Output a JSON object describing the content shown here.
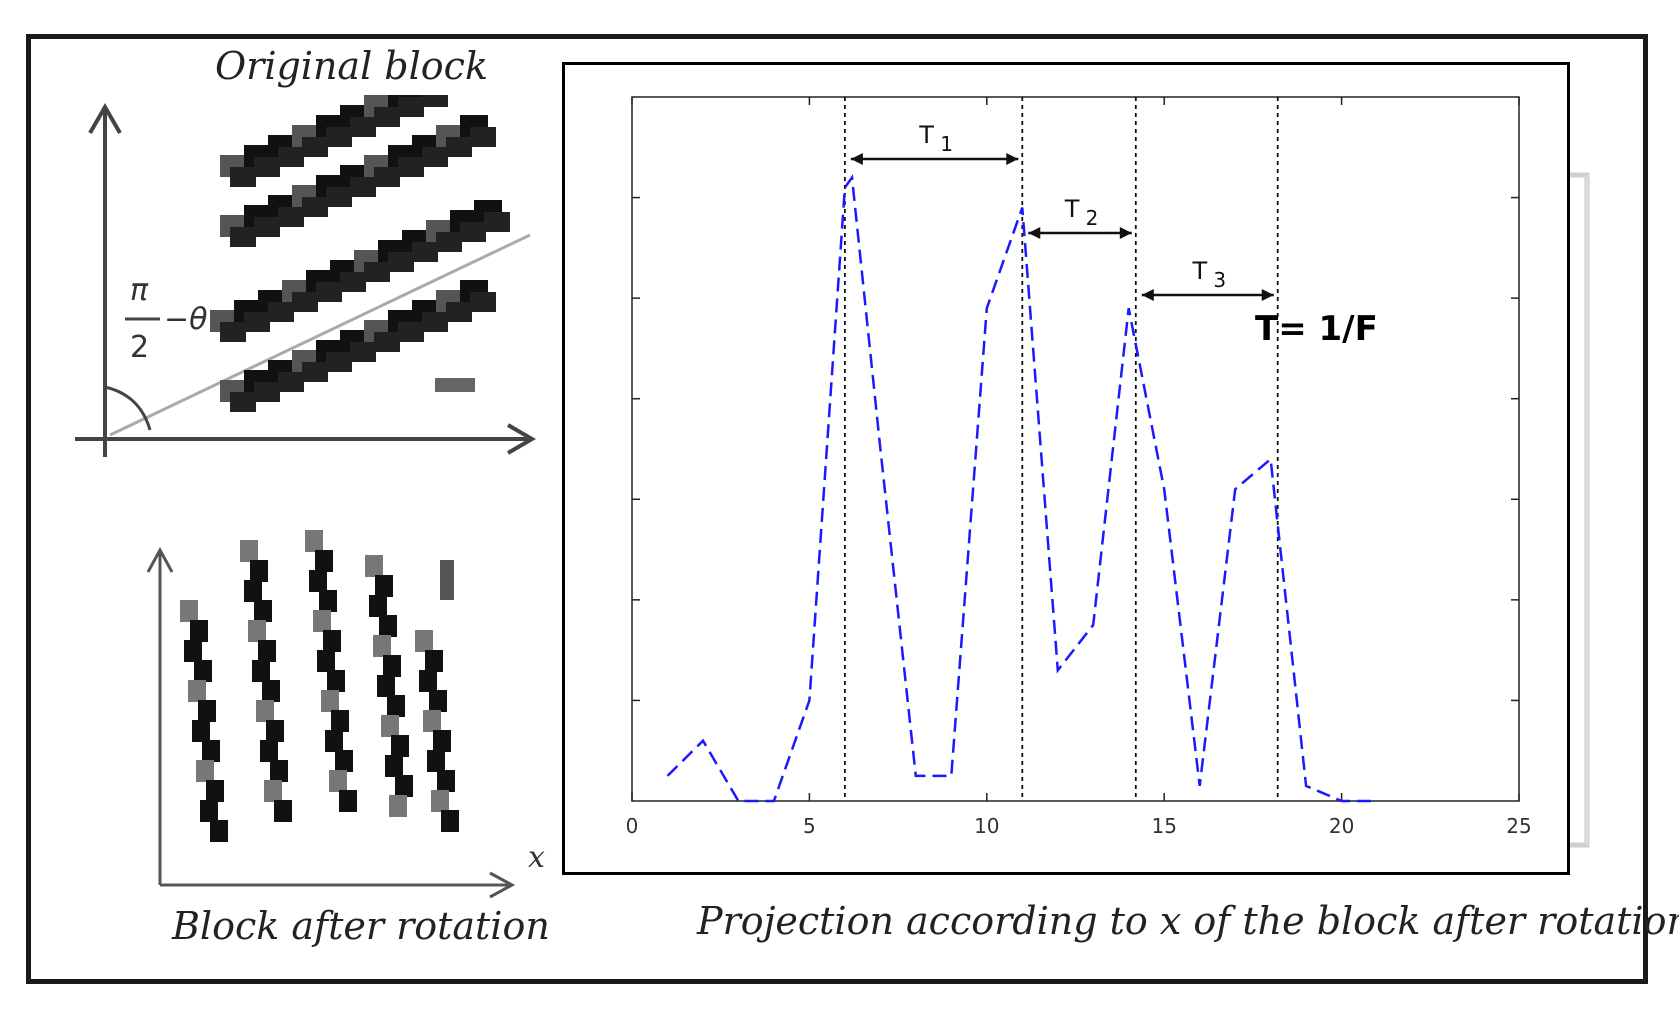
{
  "captions": {
    "original_block": "Original block",
    "block_after_rotation": "Block after rotation",
    "projection": "Projection according to x of the block after rotation"
  },
  "angle_label": {
    "numerator": "π",
    "denominator": "2",
    "minus_theta": "−θ"
  },
  "rotated_axis_label": "x",
  "chart_data": {
    "type": "line",
    "x": [
      1,
      2,
      3,
      4,
      5,
      6,
      6.2,
      7,
      8,
      9,
      10,
      11,
      12,
      13,
      14,
      15,
      16,
      17,
      18,
      19,
      20,
      21
    ],
    "series": [
      {
        "values": [
          0.25,
          0.6,
          0.0,
          0.0,
          1.0,
          6.1,
          6.2,
          3.5,
          0.25,
          0.25,
          4.9,
          5.9,
          1.3,
          1.75,
          4.9,
          3.1,
          0.15,
          3.1,
          3.4,
          0.15,
          0.0,
          0.0
        ],
        "color": "#1a1aff",
        "style": "dashed"
      }
    ],
    "xlim": [
      0,
      25
    ],
    "ylim": [
      0,
      7
    ],
    "xticks": [
      "0",
      "5",
      "10",
      "15",
      "20",
      "25"
    ],
    "vlines": [
      6,
      11,
      14.2,
      18.2
    ],
    "periods": [
      {
        "label": "T",
        "sub": "1",
        "from": 6,
        "to": 11
      },
      {
        "label": "T",
        "sub": "2",
        "from": 11,
        "to": 14.2
      },
      {
        "label": "T",
        "sub": "3",
        "from": 14.2,
        "to": 18.2
      }
    ],
    "annotation": "T=  1/F"
  },
  "colors": {
    "curve": "#1a1aff",
    "frame": "#1a1a1a"
  }
}
